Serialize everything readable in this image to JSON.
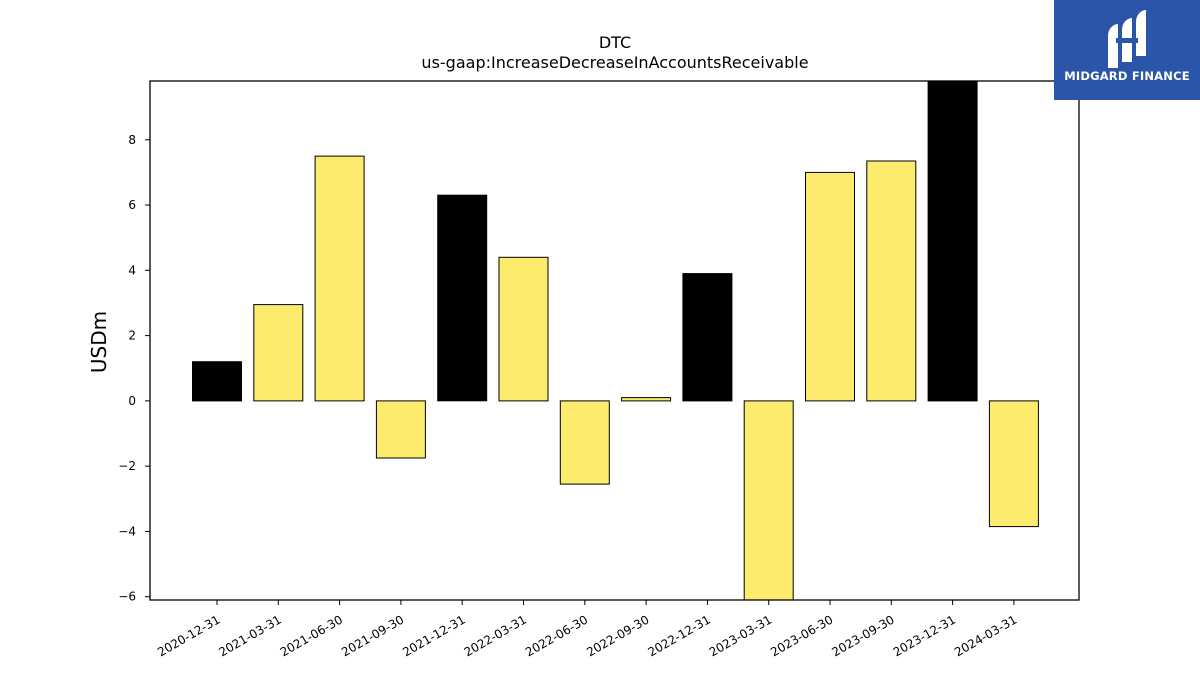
{
  "chart_data": {
    "type": "bar",
    "title": "DTC",
    "subtitle": "us-gaap:IncreaseDecreaseInAccountsReceivable",
    "xlabel": "",
    "ylabel": "USDm",
    "ylim": [
      -6.1,
      9.8
    ],
    "yticks": [
      -6,
      -4,
      -2,
      0,
      2,
      4,
      6,
      8
    ],
    "ytick_labels": [
      "−6",
      "−4",
      "−2",
      "0",
      "2",
      "4",
      "6",
      "8"
    ],
    "categories": [
      "2020-12-31",
      "2021-03-31",
      "2021-06-30",
      "2021-09-30",
      "2021-12-31",
      "2022-03-31",
      "2022-06-30",
      "2022-09-30",
      "2022-12-31",
      "2023-03-31",
      "2023-06-30",
      "2023-09-30",
      "2023-12-31",
      "2024-03-31"
    ],
    "values": [
      1.2,
      2.95,
      7.5,
      -1.75,
      6.3,
      4.4,
      -2.55,
      0.1,
      3.9,
      -6.1,
      7.0,
      7.35,
      9.8,
      -3.85
    ],
    "bar_colors": [
      "#000000",
      "#fdeb6d",
      "#fdeb6d",
      "#fdeb6d",
      "#000000",
      "#fdeb6d",
      "#fdeb6d",
      "#fdeb6d",
      "#000000",
      "#fdeb6d",
      "#fdeb6d",
      "#fdeb6d",
      "#000000",
      "#fdeb6d"
    ],
    "grid": false
  },
  "colors": {
    "highlight_bar": "#000000",
    "regular_bar": "#fdeb6d",
    "logo_background": "#2b55a8"
  },
  "logo": {
    "text": "MIDGARD FINANCE"
  }
}
